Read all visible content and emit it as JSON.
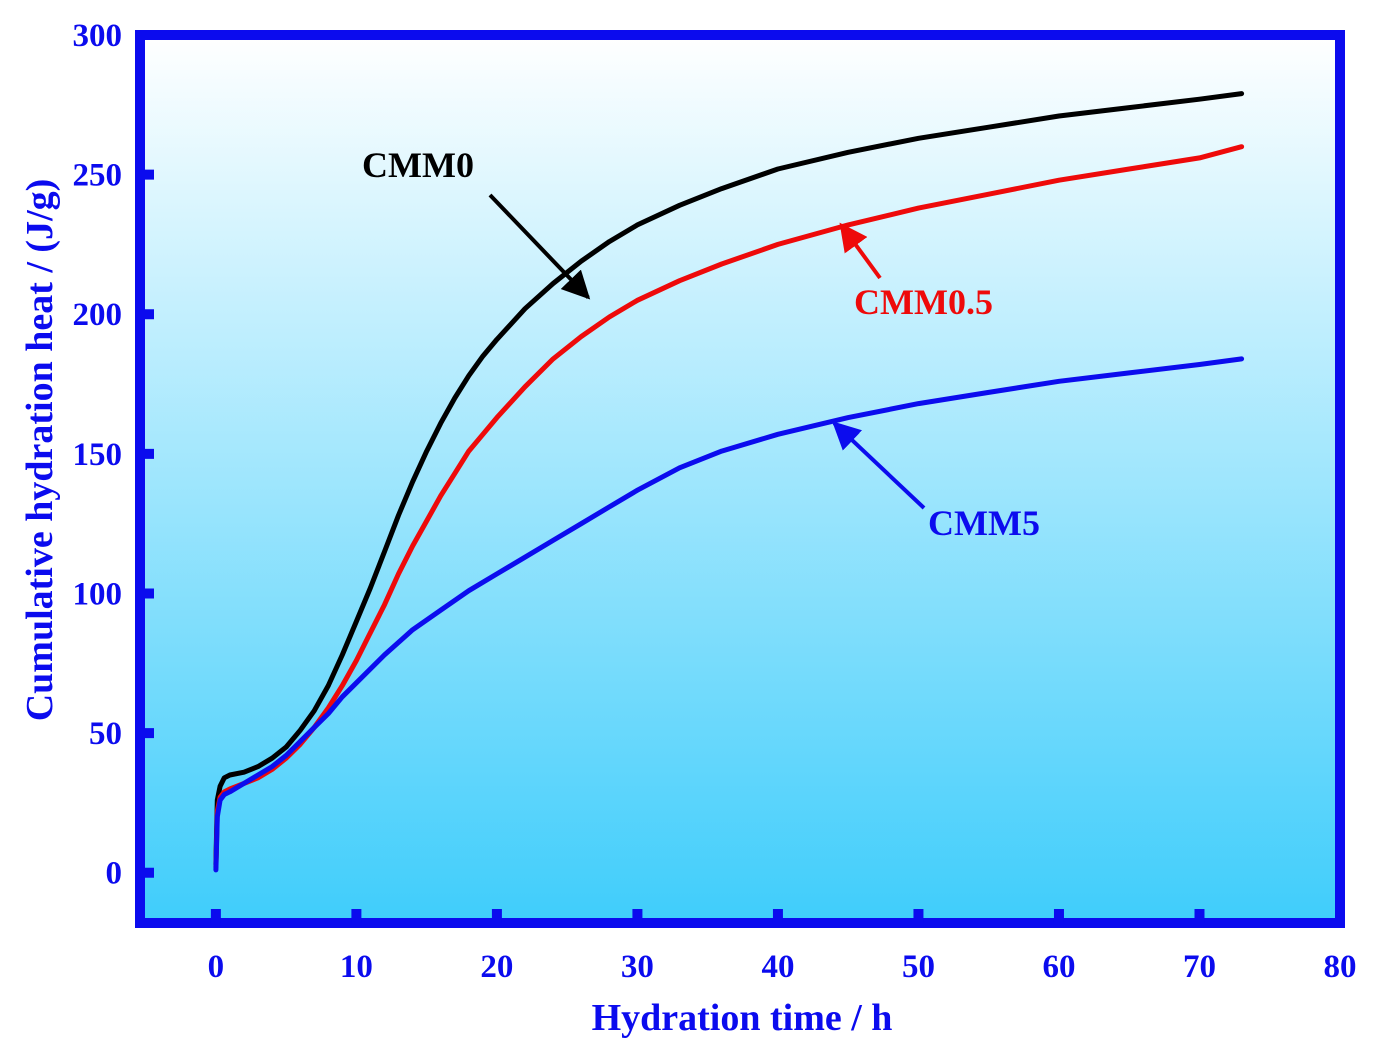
{
  "chart_data": {
    "type": "line",
    "title": "",
    "xlabel": "Hydration time / h",
    "ylabel": "Cumulative hydration heat / (J/g)",
    "xlim": [
      -5.4,
      80
    ],
    "ylim": [
      -18,
      300
    ],
    "xticks": [
      0,
      10,
      20,
      30,
      40,
      50,
      60,
      70,
      80
    ],
    "yticks": [
      0,
      50,
      100,
      150,
      200,
      250,
      300
    ],
    "grid": false,
    "colors": {
      "axis": "#0b0bee",
      "bg_top": "#ffffff",
      "bg_bottom": "#3fcdfb"
    },
    "series": [
      {
        "name": "CMM0",
        "color": "#000000",
        "x": [
          0,
          0.1,
          0.3,
          0.6,
          1,
          2,
          3,
          4,
          5,
          6,
          7,
          8,
          9,
          10,
          11,
          12,
          13,
          14,
          15,
          16,
          17,
          18,
          19,
          20,
          22,
          24,
          26,
          28,
          30,
          33,
          36,
          40,
          45,
          50,
          55,
          60,
          65,
          70,
          73
        ],
        "y": [
          3,
          26,
          31,
          34,
          35,
          36,
          38,
          41,
          45,
          51,
          58,
          67,
          78,
          90,
          102,
          115,
          128,
          140,
          151,
          161,
          170,
          178,
          185,
          191,
          202,
          211,
          219,
          226,
          232,
          239,
          245,
          252,
          258,
          263,
          267,
          271,
          274,
          277,
          279
        ]
      },
      {
        "name": "CMM0.5",
        "color": "#ee0a0a",
        "x": [
          0,
          0.1,
          0.3,
          0.6,
          1,
          2,
          3,
          4,
          5,
          6,
          7,
          8,
          9,
          10,
          11,
          12,
          13,
          14,
          15,
          16,
          17,
          18,
          19,
          20,
          22,
          24,
          26,
          28,
          30,
          33,
          36,
          40,
          45,
          50,
          55,
          60,
          65,
          70,
          73
        ],
        "y": [
          2,
          22,
          27,
          29,
          30,
          32,
          34,
          37,
          41,
          46,
          52,
          59,
          67,
          76,
          86,
          96,
          107,
          117,
          126,
          135,
          143,
          151,
          157,
          163,
          174,
          184,
          192,
          199,
          205,
          212,
          218,
          225,
          232,
          238,
          243,
          248,
          252,
          256,
          260
        ]
      },
      {
        "name": "CMM5",
        "color": "#0c0cee",
        "x": [
          0,
          0.1,
          0.3,
          0.6,
          1,
          2,
          3,
          4,
          5,
          6,
          7,
          8,
          9,
          10,
          12,
          14,
          16,
          18,
          20,
          22,
          24,
          26,
          28,
          30,
          33,
          36,
          40,
          45,
          50,
          55,
          60,
          65,
          70,
          73
        ],
        "y": [
          1,
          20,
          26,
          28,
          29,
          32,
          35,
          38,
          42,
          47,
          52,
          57,
          63,
          68,
          78,
          87,
          94,
          101,
          107,
          113,
          119,
          125,
          131,
          137,
          145,
          151,
          157,
          163,
          168,
          172,
          176,
          179,
          182,
          184
        ]
      }
    ],
    "annotations": [
      {
        "text": "CMM0",
        "color": "#000000",
        "target_x": 26.5,
        "target_y": 206
      },
      {
        "text": "CMM0.5",
        "color": "#ee0a0a",
        "target_x": 44.5,
        "target_y": 232
      },
      {
        "text": "CMM5",
        "color": "#0c0cee",
        "target_x": 44,
        "target_y": 161
      }
    ]
  }
}
